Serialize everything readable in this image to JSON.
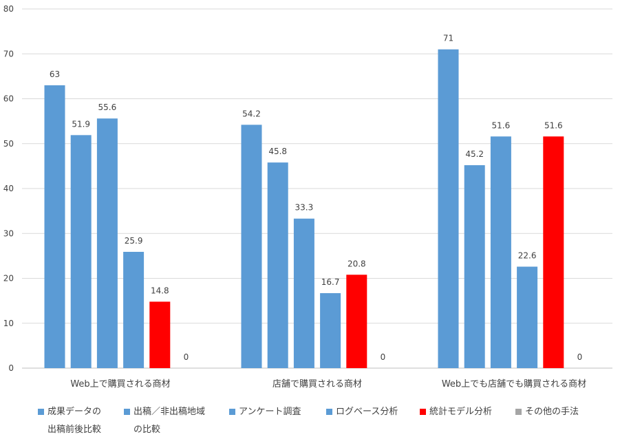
{
  "chart_data": {
    "type": "bar",
    "title": "",
    "xlabel": "",
    "ylabel": "",
    "ylim": [
      0,
      80
    ],
    "yticks": [
      0,
      10,
      20,
      30,
      40,
      50,
      60,
      70,
      80
    ],
    "grid": true,
    "legend_position": "bottom",
    "categories": [
      "Web上で購買される商材",
      "店舗で購買される商材",
      "Web上でも店舗でも購買される商材"
    ],
    "series": [
      {
        "name": "成果データの\n出稿前後比較",
        "color": "#5b9bd5",
        "values": [
          63,
          54.2,
          71
        ],
        "labels": [
          "63",
          "54.2",
          "71"
        ]
      },
      {
        "name": "出稿／非出稿地域\nの比較",
        "color": "#5b9bd5",
        "values": [
          51.9,
          45.8,
          45.2
        ],
        "labels": [
          "51.9",
          "45.8",
          "45.2"
        ]
      },
      {
        "name": "アンケート調査",
        "color": "#5b9bd5",
        "values": [
          55.6,
          33.3,
          51.6
        ],
        "labels": [
          "55.6",
          "33.3",
          "51.6"
        ]
      },
      {
        "name": "ログベース分析",
        "color": "#5b9bd5",
        "values": [
          25.9,
          16.7,
          22.6
        ],
        "labels": [
          "25.9",
          "16.7",
          "22.6"
        ]
      },
      {
        "name": "統計モデル分析",
        "color": "#ff0000",
        "values": [
          14.8,
          20.8,
          51.6
        ],
        "labels": [
          "14.8",
          "20.8",
          "51.6"
        ]
      },
      {
        "name": "その他の手法",
        "color": "#a5a5a5",
        "values": [
          0,
          0,
          0
        ],
        "labels": [
          "0",
          "0",
          "0"
        ]
      }
    ]
  }
}
